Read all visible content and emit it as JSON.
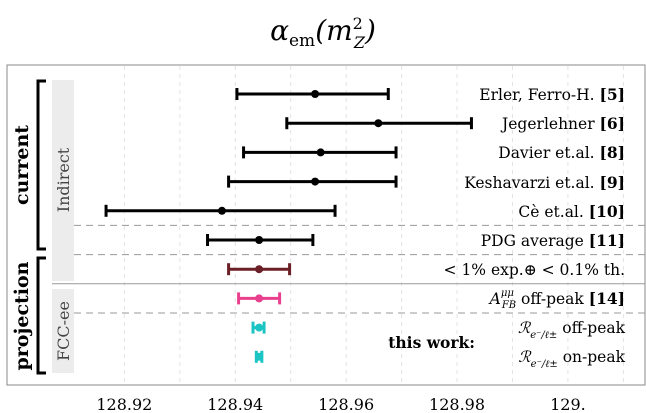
{
  "chart_data": {
    "type": "scatter",
    "title_main": "α",
    "title_sub": "em",
    "title_arg": "(m",
    "title_sup": "2",
    "title_arg_sub": "Z",
    "title_close": ")",
    "xlim": [
      128.912,
      129.013
    ],
    "x_ticks": [
      "128.92",
      "128.94",
      "128.96",
      "128.98",
      "129."
    ],
    "x_tick_values": [
      128.92,
      128.94,
      128.96,
      128.98,
      129.0
    ],
    "grid": "vertical dashed",
    "groups": [
      {
        "name": "current",
        "sub": "Indirect"
      },
      {
        "name": "projection",
        "sub": "FCC-ee"
      }
    ],
    "this_work_label": "this work:",
    "rows": [
      {
        "label_main": "Erler, Ferro-H. ",
        "label_ref": "[5]",
        "center": 128.9544,
        "low": 128.9403,
        "high": 128.9676,
        "color": "#000000"
      },
      {
        "label_main": "Jegerlehner ",
        "label_ref": "[6]",
        "center": 128.9658,
        "low": 128.9493,
        "high": 128.9826,
        "color": "#000000"
      },
      {
        "label_main": "Davier et.al. ",
        "label_ref": "[8]",
        "center": 128.9554,
        "low": 128.9415,
        "high": 128.969,
        "color": "#000000"
      },
      {
        "label_main": "Keshavarzi et.al. ",
        "label_ref": "[9]",
        "center": 128.9544,
        "low": 128.9388,
        "high": 128.969,
        "color": "#000000"
      },
      {
        "label_main": "Cè et.al. ",
        "label_ref": "[10]",
        "center": 128.9376,
        "low": 128.9167,
        "high": 128.958,
        "color": "#000000"
      },
      {
        "label_main": "PDG average ",
        "label_ref": "[11]",
        "center": 128.9443,
        "low": 128.935,
        "high": 128.954,
        "color": "#000000"
      },
      {
        "label_main": "< 1% exp.⊕ < 0.1% th.",
        "label_ref": "",
        "center": 128.9443,
        "low": 128.9388,
        "high": 128.9498,
        "color": "#6b1f26"
      },
      {
        "label_main": "A",
        "label_sup": "μμ",
        "label_sub": "FB",
        "label_tail": " off-peak ",
        "label_ref": "[14]",
        "center": 128.9443,
        "low": 128.9406,
        "high": 128.948,
        "color": "#e8408e"
      },
      {
        "label_main": "ℛ",
        "label_sub": "e⁻/ℓ±",
        "label_tail": " off-peak",
        "label_ref": "",
        "center": 128.9443,
        "low": 128.9432,
        "high": 128.9452,
        "color": "#1cc4c4"
      },
      {
        "label_main": "ℛ",
        "label_sub": "e⁻/ℓ±",
        "label_tail": " on-peak",
        "label_ref": "",
        "center": 128.9443,
        "low": 128.9438,
        "high": 128.9448,
        "color": "#1cc4c4"
      }
    ],
    "dashed_separators_after_rows": [
      4,
      5,
      7
    ],
    "solid_separator_after_row": 6
  }
}
